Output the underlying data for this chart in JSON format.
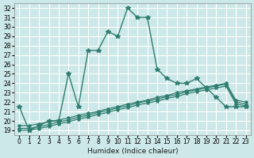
{
  "xlabel": "Humidex (Indice chaleur)",
  "background_color": "#cde8e8",
  "grid_color": "#ffffff",
  "line_color": "#2e7d6e",
  "xlim": [
    -0.5,
    23.5
  ],
  "ylim": [
    18.5,
    32.5
  ],
  "xticks": [
    0,
    1,
    2,
    3,
    4,
    5,
    6,
    7,
    8,
    9,
    10,
    11,
    12,
    13,
    14,
    15,
    16,
    17,
    18,
    19,
    20,
    21,
    22,
    23
  ],
  "yticks": [
    19,
    20,
    21,
    22,
    23,
    24,
    25,
    26,
    27,
    28,
    29,
    30,
    31,
    32
  ],
  "series1_x": [
    0,
    1,
    2,
    3,
    4,
    5,
    6,
    7,
    8,
    9,
    10,
    11,
    12,
    13,
    14,
    15,
    16,
    17,
    18,
    19,
    20,
    21,
    22,
    23
  ],
  "series1_y": [
    21.5,
    19.0,
    19.5,
    20.0,
    20.0,
    25.0,
    21.5,
    27.5,
    27.5,
    29.5,
    29.0,
    32.0,
    31.0,
    31.0,
    25.5,
    24.5,
    24.0,
    24.0,
    24.5,
    23.5,
    22.5,
    21.5,
    21.5,
    21.5
  ],
  "series2_x": [
    0,
    1,
    2,
    3,
    4,
    5,
    6,
    7,
    8,
    9,
    10,
    11,
    12,
    13,
    14,
    15,
    16,
    17,
    18,
    19,
    20,
    21,
    22,
    23
  ],
  "series2_y": [
    19.2,
    19.2,
    19.4,
    19.6,
    19.9,
    20.1,
    20.4,
    20.6,
    20.9,
    21.1,
    21.4,
    21.6,
    21.9,
    22.1,
    22.3,
    22.6,
    22.8,
    23.1,
    23.3,
    23.5,
    23.7,
    23.9,
    22.0,
    21.8
  ],
  "series3_x": [
    0,
    1,
    2,
    3,
    4,
    5,
    6,
    7,
    8,
    9,
    10,
    11,
    12,
    13,
    14,
    15,
    16,
    17,
    18,
    19,
    20,
    21,
    22,
    23
  ],
  "series3_y": [
    19.0,
    19.0,
    19.2,
    19.4,
    19.7,
    19.9,
    20.2,
    20.4,
    20.7,
    20.9,
    21.2,
    21.4,
    21.7,
    21.9,
    22.1,
    22.4,
    22.6,
    22.9,
    23.1,
    23.3,
    23.5,
    23.7,
    21.8,
    21.6
  ],
  "series4_x": [
    0,
    1,
    2,
    3,
    4,
    5,
    6,
    7,
    8,
    9,
    10,
    11,
    12,
    13,
    14,
    15,
    16,
    17,
    18,
    19,
    20,
    21,
    22,
    23
  ],
  "series4_y": [
    19.5,
    19.5,
    19.7,
    19.9,
    20.1,
    20.3,
    20.6,
    20.8,
    21.0,
    21.3,
    21.5,
    21.8,
    22.0,
    22.2,
    22.5,
    22.7,
    23.0,
    23.2,
    23.4,
    23.6,
    23.8,
    24.0,
    22.2,
    22.0
  ]
}
